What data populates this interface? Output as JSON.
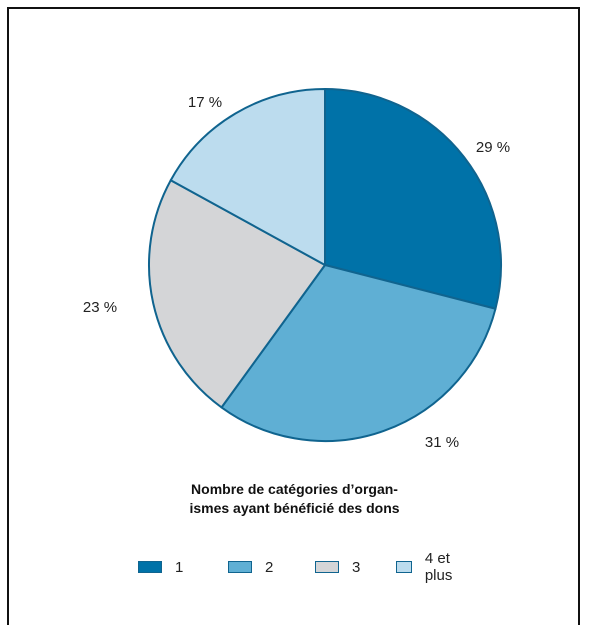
{
  "chart_data": {
    "type": "pie",
    "title": "",
    "legend_title_line1": "Nombre de catégories d’organ-",
    "legend_title_line2": "ismes ayant bénéficié des dons",
    "legend_position": "bottom",
    "slices": [
      {
        "name": "1",
        "value": 29,
        "label": "29 %",
        "color": "#0072a8"
      },
      {
        "name": "2",
        "value": 31,
        "label": "31 %",
        "color": "#5fafd4"
      },
      {
        "name": "3",
        "value": 23,
        "label": "23 %",
        "color": "#d4d5d7"
      },
      {
        "name": "4 et plus",
        "value": 17,
        "label": "17 %",
        "color": "#bcdcee"
      }
    ],
    "edge_color": "#10648f"
  }
}
